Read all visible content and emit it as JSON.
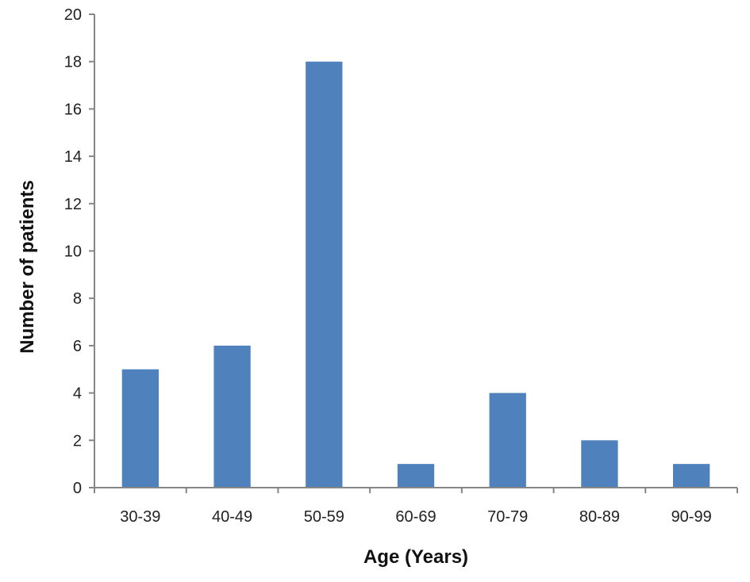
{
  "chart_data": {
    "type": "bar",
    "title": "",
    "xlabel": "Age (Years)",
    "ylabel": "Number of patients",
    "categories": [
      "30-39",
      "40-49",
      "50-59",
      "60-69",
      "70-79",
      "80-89",
      "90-99"
    ],
    "values": [
      5,
      6,
      18,
      1,
      4,
      2,
      1
    ],
    "ylim": [
      0,
      20
    ],
    "yticks": [
      0,
      2,
      4,
      6,
      8,
      10,
      12,
      14,
      16,
      18,
      20
    ],
    "grid": false,
    "legend": "none",
    "bar_color": "#4f81bd",
    "axis_color": "#868686"
  }
}
